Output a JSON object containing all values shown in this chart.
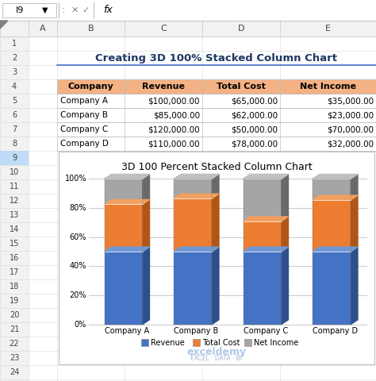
{
  "title_text": "Creating 3D 100% Stacked Column Chart",
  "chart_title": "3D 100 Percent Stacked Column Chart",
  "companies": [
    "Company A",
    "Company B",
    "Company C",
    "Company D"
  ],
  "revenue": [
    100000,
    85000,
    120000,
    110000
  ],
  "total_cost": [
    65000,
    62000,
    50000,
    78000
  ],
  "net_income": [
    35000,
    23000,
    70000,
    32000
  ],
  "table_headers": [
    "Company",
    "Revenue",
    "Total Cost",
    "Net Income"
  ],
  "bar_color_revenue": "#4472C4",
  "bar_color_cost": "#ED7D31",
  "bar_color_net": "#A5A5A5",
  "bar_color_revenue_dark": "#2E4F8C",
  "bar_color_cost_dark": "#B05515",
  "bar_color_net_dark": "#696969",
  "bar_color_revenue_top": "#7098D4",
  "bar_color_cost_top": "#F2A060",
  "bar_color_net_top": "#C0C0C0",
  "excel_bg": "#F2F2F2",
  "grid_color": "#C8C8C8",
  "legend_labels": [
    "Revenue",
    "Total Cost",
    "Net Income"
  ],
  "header_orange": "#F4B183",
  "title_color": "#1F3864",
  "underline_color": "#4472C4",
  "cell_border": "#BFBFBF",
  "toolbar_bg": "#F2F2F2",
  "col_header_bg": "#F2F2F2"
}
